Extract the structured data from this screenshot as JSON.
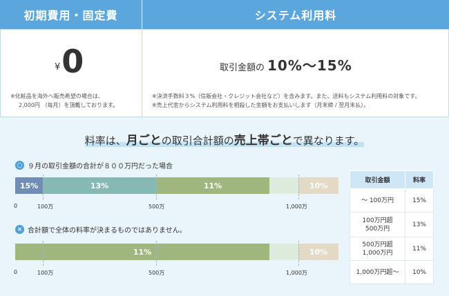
{
  "header": {
    "initial_fee_title": "初期費用・固定費",
    "system_fee_title": "システム利用料"
  },
  "initial_fee": {
    "currency": "¥",
    "amount": "0",
    "note_line1": "※化粧品を海外へ販売希望の場合は、",
    "note_line2": "2,000円 （毎月）を頂戴しております。"
  },
  "system_fee": {
    "label": "取引金額の",
    "rate": "10%～15%",
    "note_line1": "※決済手数料３%（信販会社・クレジット会社など）を含みます。また、送料もシステム利用料の対象です。",
    "note_line2": "※売上代金からシステム利用料を相殺した金額をお支払いします（月末締 / 翌月末払）。"
  },
  "headline": {
    "part1": "料率は、",
    "bold1": "月ごと",
    "part2": "の取引合計額の",
    "bold2": "売上帯ごと",
    "part3": "で異なります。"
  },
  "example_ok": {
    "icon": "circle-check",
    "icon_glyph": "○",
    "title": "９月の取引金額の合計が８００万円だった場合",
    "segments": [
      "15%",
      "13%",
      "11%",
      "10%"
    ],
    "axis": [
      "0",
      "100万",
      "500万",
      "1,000万"
    ]
  },
  "example_ng": {
    "icon": "circle-x",
    "icon_glyph": "×",
    "title": "合計額で全体の料率が決まるものではありません。",
    "segments": [
      "11%",
      "10%"
    ],
    "axis": [
      "0",
      "100万",
      "500万",
      "1,000万"
    ]
  },
  "rate_table": {
    "headers": [
      "取引金額",
      "料率"
    ],
    "rows": [
      {
        "range": "～ 100万円",
        "rate": "15%"
      },
      {
        "range": "100万円超\n500万円",
        "rate": "13%"
      },
      {
        "range": "500万円超\n1,000万円",
        "rate": "11%"
      },
      {
        "range": "1,000万円超～",
        "rate": "10%"
      }
    ]
  },
  "colors": {
    "header_blue": "#5aa6dd",
    "seg_15": "#6f8db5",
    "seg_13": "#86b9b4",
    "seg_11": "#9fb67f",
    "seg_10": "#e3d9c4",
    "panel_bg": "#eaf4fb"
  }
}
